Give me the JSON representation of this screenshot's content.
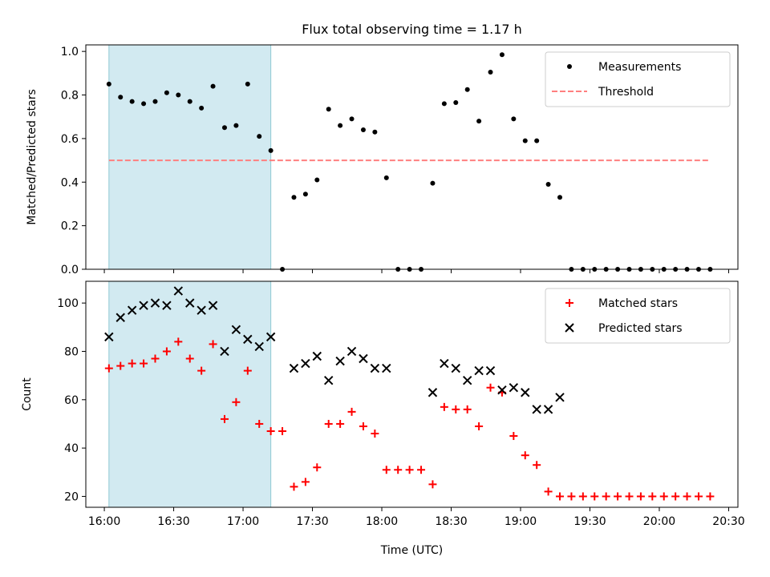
{
  "chart_data": [
    {
      "type": "scatter",
      "title": "Flux total observing time = 1.17 h",
      "xlabel": "",
      "ylabel": "Matched/Predicted stars",
      "xlim": [
        "15:52",
        "20:34"
      ],
      "ylim": [
        0.0,
        1.03
      ],
      "yticks": [
        "0.0",
        "0.2",
        "0.4",
        "0.6",
        "0.8",
        "1.0"
      ],
      "highlight_span": [
        "16:02",
        "17:12"
      ],
      "highlight_color": "#add8e6",
      "legend": {
        "position": "top-right",
        "entries": [
          "Measurements",
          "Threshold"
        ]
      },
      "series": [
        {
          "name": "Measurements",
          "color": "#000000",
          "marker": "dot",
          "x": [
            "16:02",
            "16:07",
            "16:12",
            "16:17",
            "16:22",
            "16:27",
            "16:32",
            "16:37",
            "16:42",
            "16:47",
            "16:52",
            "16:57",
            "17:02",
            "17:07",
            "17:12",
            "17:17",
            "17:22",
            "17:27",
            "17:32",
            "17:37",
            "17:42",
            "17:47",
            "17:52",
            "17:57",
            "18:02",
            "18:07",
            "18:12",
            "18:17",
            "18:22",
            "18:27",
            "18:32",
            "18:37",
            "18:42",
            "18:47",
            "18:52",
            "18:57",
            "19:02",
            "19:07",
            "19:12",
            "19:17",
            "19:22",
            "19:27",
            "19:32",
            "19:37",
            "19:42",
            "19:47",
            "19:52",
            "19:57",
            "20:02",
            "20:07",
            "20:12",
            "20:17",
            "20:22"
          ],
          "y": [
            0.85,
            0.79,
            0.77,
            0.76,
            0.77,
            0.81,
            0.8,
            0.77,
            0.74,
            0.84,
            0.65,
            0.66,
            0.85,
            0.61,
            0.545,
            0.0,
            0.33,
            0.345,
            0.41,
            0.735,
            0.66,
            0.69,
            0.64,
            0.63,
            0.42,
            0.0,
            0.0,
            0.0,
            0.395,
            0.76,
            0.765,
            0.825,
            0.68,
            0.905,
            0.985,
            0.69,
            0.59,
            0.59,
            0.39,
            0.33,
            0.0,
            0.0,
            0.0,
            0.0,
            0.0,
            0.0,
            0.0,
            0.0,
            0.0,
            0.0,
            0.0,
            0.0,
            0.0
          ]
        },
        {
          "name": "Threshold",
          "color": "#ff7f7f",
          "style": "dashed",
          "x": [
            "16:02",
            "20:22"
          ],
          "y": [
            0.5,
            0.5
          ]
        }
      ]
    },
    {
      "type": "scatter",
      "title": "",
      "xlabel": "Time (UTC)",
      "ylabel": "Count",
      "xlim": [
        "15:52",
        "20:34"
      ],
      "ylim": [
        15.5,
        109
      ],
      "yticks": [
        "20",
        "40",
        "60",
        "80",
        "100"
      ],
      "xticks": [
        "16:00",
        "16:30",
        "17:00",
        "17:30",
        "18:00",
        "18:30",
        "19:00",
        "19:30",
        "20:00",
        "20:30"
      ],
      "highlight_span": [
        "16:02",
        "17:12"
      ],
      "highlight_color": "#add8e6",
      "legend": {
        "position": "top-right",
        "entries": [
          "Matched stars",
          "Predicted stars"
        ]
      },
      "series": [
        {
          "name": "Matched stars",
          "color": "#ff0000",
          "marker": "plus",
          "x": [
            "16:02",
            "16:07",
            "16:12",
            "16:17",
            "16:22",
            "16:27",
            "16:32",
            "16:37",
            "16:42",
            "16:47",
            "16:52",
            "16:57",
            "17:02",
            "17:07",
            "17:12",
            "17:17",
            "17:22",
            "17:27",
            "17:32",
            "17:37",
            "17:42",
            "17:47",
            "17:52",
            "17:57",
            "18:02",
            "18:07",
            "18:12",
            "18:17",
            "18:22",
            "18:27",
            "18:32",
            "18:37",
            "18:42",
            "18:47",
            "18:52",
            "18:57",
            "19:02",
            "19:07",
            "19:12",
            "19:17",
            "19:22",
            "19:27",
            "19:32",
            "19:37",
            "19:42",
            "19:47",
            "19:52",
            "19:57",
            "20:02",
            "20:07",
            "20:12",
            "20:17",
            "20:22"
          ],
          "y": [
            73,
            74,
            75,
            75,
            77,
            80,
            84,
            77,
            72,
            83,
            52,
            59,
            72,
            50,
            47,
            47,
            24,
            26,
            32,
            50,
            50,
            55,
            49,
            46,
            31,
            31,
            31,
            31,
            25,
            57,
            56,
            56,
            49,
            65,
            63,
            45,
            37,
            33,
            22,
            20,
            20,
            20,
            20,
            20,
            20,
            20,
            20,
            20,
            20,
            20,
            20,
            20,
            20
          ]
        },
        {
          "name": "Predicted stars",
          "color": "#000000",
          "marker": "x",
          "x": [
            "16:02",
            "16:07",
            "16:12",
            "16:17",
            "16:22",
            "16:27",
            "16:32",
            "16:37",
            "16:42",
            "16:47",
            "16:52",
            "16:57",
            "17:02",
            "17:07",
            "17:12",
            "17:22",
            "17:27",
            "17:32",
            "17:37",
            "17:42",
            "17:47",
            "17:52",
            "17:57",
            "18:02",
            "18:22",
            "18:27",
            "18:32",
            "18:37",
            "18:42",
            "18:47",
            "18:52",
            "18:57",
            "19:02",
            "19:07",
            "19:12",
            "19:17"
          ],
          "y": [
            86,
            94,
            97,
            99,
            100,
            99,
            105,
            100,
            97,
            99,
            80,
            89,
            85,
            82,
            86,
            73,
            75,
            78,
            68,
            76,
            80,
            77,
            73,
            73,
            63,
            75,
            73,
            68,
            72,
            72,
            64,
            65,
            63,
            56,
            56,
            61
          ]
        }
      ]
    }
  ]
}
